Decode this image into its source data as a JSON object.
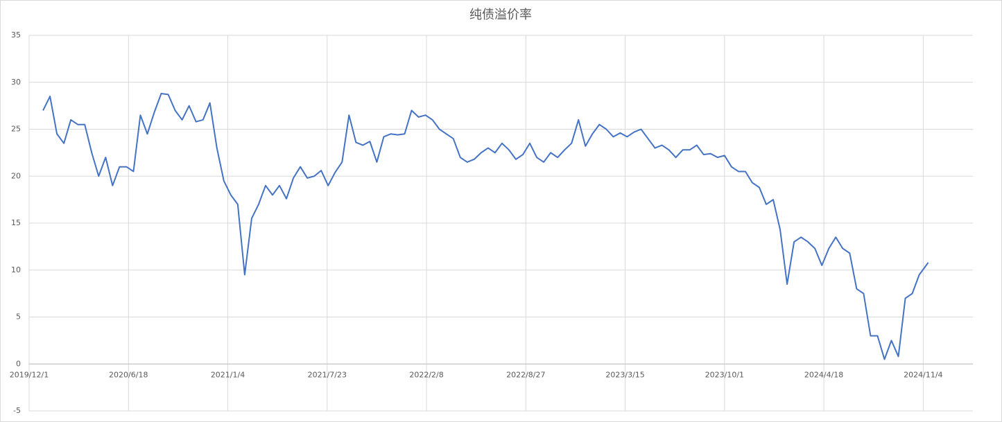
{
  "chart_data": {
    "type": "line",
    "title": "纯债溢价率",
    "x": [
      "2019/12/29",
      "2020/1/12",
      "2020/1/26",
      "2020/2/9",
      "2020/2/23",
      "2020/3/8",
      "2020/3/22",
      "2020/4/5",
      "2020/4/19",
      "2020/5/3",
      "2020/5/17",
      "2020/5/31",
      "2020/6/14",
      "2020/6/28",
      "2020/7/12",
      "2020/7/26",
      "2020/8/9",
      "2020/8/23",
      "2020/9/6",
      "2020/9/20",
      "2020/10/4",
      "2020/10/18",
      "2020/11/1",
      "2020/11/15",
      "2020/11/29",
      "2020/12/13",
      "2020/12/27",
      "2021/1/10",
      "2021/1/24",
      "2021/2/7",
      "2021/2/21",
      "2021/3/7",
      "2021/3/21",
      "2021/4/4",
      "2021/4/18",
      "2021/5/2",
      "2021/5/16",
      "2021/5/30",
      "2021/6/13",
      "2021/6/27",
      "2021/7/11",
      "2021/7/25",
      "2021/8/8",
      "2021/8/22",
      "2021/9/5",
      "2021/9/19",
      "2021/10/3",
      "2021/10/17",
      "2021/10/31",
      "2021/11/14",
      "2021/11/28",
      "2021/12/12",
      "2021/12/26",
      "2022/1/9",
      "2022/1/23",
      "2022/2/6",
      "2022/2/20",
      "2022/3/6",
      "2022/3/20",
      "2022/4/3",
      "2022/4/17",
      "2022/5/1",
      "2022/5/15",
      "2022/5/29",
      "2022/6/12",
      "2022/6/26",
      "2022/7/10",
      "2022/7/24",
      "2022/8/7",
      "2022/8/21",
      "2022/9/4",
      "2022/9/18",
      "2022/10/2",
      "2022/10/16",
      "2022/10/30",
      "2022/11/13",
      "2022/11/27",
      "2022/12/11",
      "2022/12/25",
      "2023/1/8",
      "2023/1/22",
      "2023/2/5",
      "2023/2/19",
      "2023/3/5",
      "2023/3/19",
      "2023/4/2",
      "2023/4/16",
      "2023/4/30",
      "2023/5/14",
      "2023/5/28",
      "2023/6/11",
      "2023/6/25",
      "2023/7/9",
      "2023/7/23",
      "2023/8/6",
      "2023/8/20",
      "2023/9/3",
      "2023/9/17",
      "2023/10/1",
      "2023/10/15",
      "2023/10/29",
      "2023/11/12",
      "2023/11/26",
      "2023/12/10",
      "2023/12/24",
      "2024/1/7",
      "2024/1/21",
      "2024/2/4",
      "2024/2/18",
      "2024/3/3",
      "2024/3/17",
      "2024/3/31",
      "2024/4/14",
      "2024/4/28",
      "2024/5/12",
      "2024/5/26",
      "2024/6/9",
      "2024/6/23",
      "2024/7/7",
      "2024/7/21",
      "2024/8/4",
      "2024/8/18",
      "2024/9/1",
      "2024/9/15",
      "2024/9/29",
      "2024/10/13",
      "2024/10/27",
      "2024/11/10",
      "2024/11/14"
    ],
    "series": [
      {
        "color": "#4472c4",
        "values": [
          27,
          28.5,
          24.5,
          23.5,
          26,
          25.5,
          25.5,
          22.5,
          20,
          22,
          19,
          21,
          21,
          20.5,
          26.5,
          24.5,
          26.8,
          28.8,
          28.7,
          27,
          26,
          27.5,
          25.8,
          26,
          27.8,
          23,
          19.5,
          18,
          17,
          9.5,
          15.5,
          17,
          19,
          18,
          19,
          17.6,
          19.8,
          21,
          19.8,
          20,
          20.6,
          19,
          20.4,
          21.5,
          26.5,
          23.6,
          23.3,
          23.7,
          21.5,
          24.2,
          24.5,
          24.4,
          24.5,
          27,
          26.3,
          26.5,
          26,
          25,
          24.5,
          24,
          22,
          21.5,
          21.8,
          22.5,
          23,
          22.5,
          23.5,
          22.8,
          21.8,
          22.3,
          23.5,
          22,
          21.5,
          22.5,
          22,
          22.8,
          23.5,
          26,
          23.2,
          24.5,
          25.5,
          25,
          24.2,
          24.6,
          24.2,
          24.7,
          25,
          24,
          23,
          23.3,
          22.8,
          22,
          22.8,
          22.8,
          23.3,
          22.3,
          22.4,
          22,
          22.2,
          21,
          20.5,
          20.5,
          19.3,
          18.8,
          17,
          17.5,
          14.3,
          8.5,
          13,
          13.5,
          13,
          12.3,
          10.5,
          12.3,
          13.5,
          12.3,
          11.8,
          8,
          7.5,
          3,
          3,
          0.5,
          2.5,
          0.8,
          7,
          7.5,
          9.5,
          10.5,
          10.8
        ]
      }
    ],
    "xlim": [
      "2019/12/1",
      "2025/2/12"
    ],
    "xticks": [
      "2019/12/1",
      "2020/6/18",
      "2021/1/4",
      "2021/7/23",
      "2022/2/8",
      "2022/8/27",
      "2023/3/15",
      "2023/10/1",
      "2024/4/18",
      "2024/11/4"
    ],
    "ylim": [
      -5,
      35
    ],
    "yticks": [
      -5,
      0,
      5,
      10,
      15,
      20,
      25,
      30,
      35
    ],
    "grid": true
  }
}
